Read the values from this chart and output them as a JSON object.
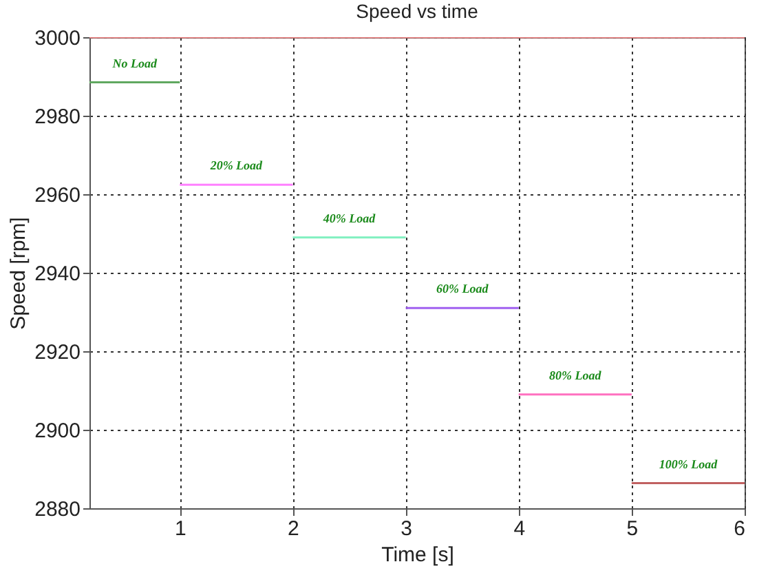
{
  "chart_data": {
    "type": "line",
    "title": "Speed vs time",
    "xlabel": "Time [s]",
    "ylabel": "Speed [rpm]",
    "series": [
      {
        "color": "#f08080",
        "x": [
          0.2,
          6
        ],
        "values": [
          3000,
          3000
        ]
      },
      {
        "name": "No Load",
        "color": "#60a860",
        "x": [
          0.2,
          1
        ],
        "values": [
          2988.5,
          2988.5
        ]
      },
      {
        "name": "20% Load",
        "color": "#ff80ff",
        "x": [
          1,
          2
        ],
        "values": [
          2962.4,
          2962.4
        ]
      },
      {
        "name": "40% Load",
        "color": "#80f0c0",
        "x": [
          2,
          3
        ],
        "values": [
          2949,
          2949
        ]
      },
      {
        "name": "60% Load",
        "color": "#a060f0",
        "x": [
          3,
          4
        ],
        "values": [
          2931,
          2931
        ]
      },
      {
        "name": "80% Load",
        "color": "#ff70c0",
        "x": [
          4,
          5
        ],
        "values": [
          2909,
          2909
        ]
      },
      {
        "name": "100% Load",
        "color": "#c06060",
        "x": [
          5,
          6
        ],
        "values": [
          2886.4,
          2886.4
        ]
      }
    ],
    "xlim": [
      0.2,
      6
    ],
    "xticks": [
      1,
      2,
      3,
      4,
      5,
      6
    ],
    "ylim": [
      2880,
      3000
    ],
    "yticks": [
      2880,
      2900,
      2920,
      2940,
      2960,
      2980,
      3000
    ],
    "grid": true,
    "legend": false,
    "marker": "none",
    "line_style": "solid"
  }
}
